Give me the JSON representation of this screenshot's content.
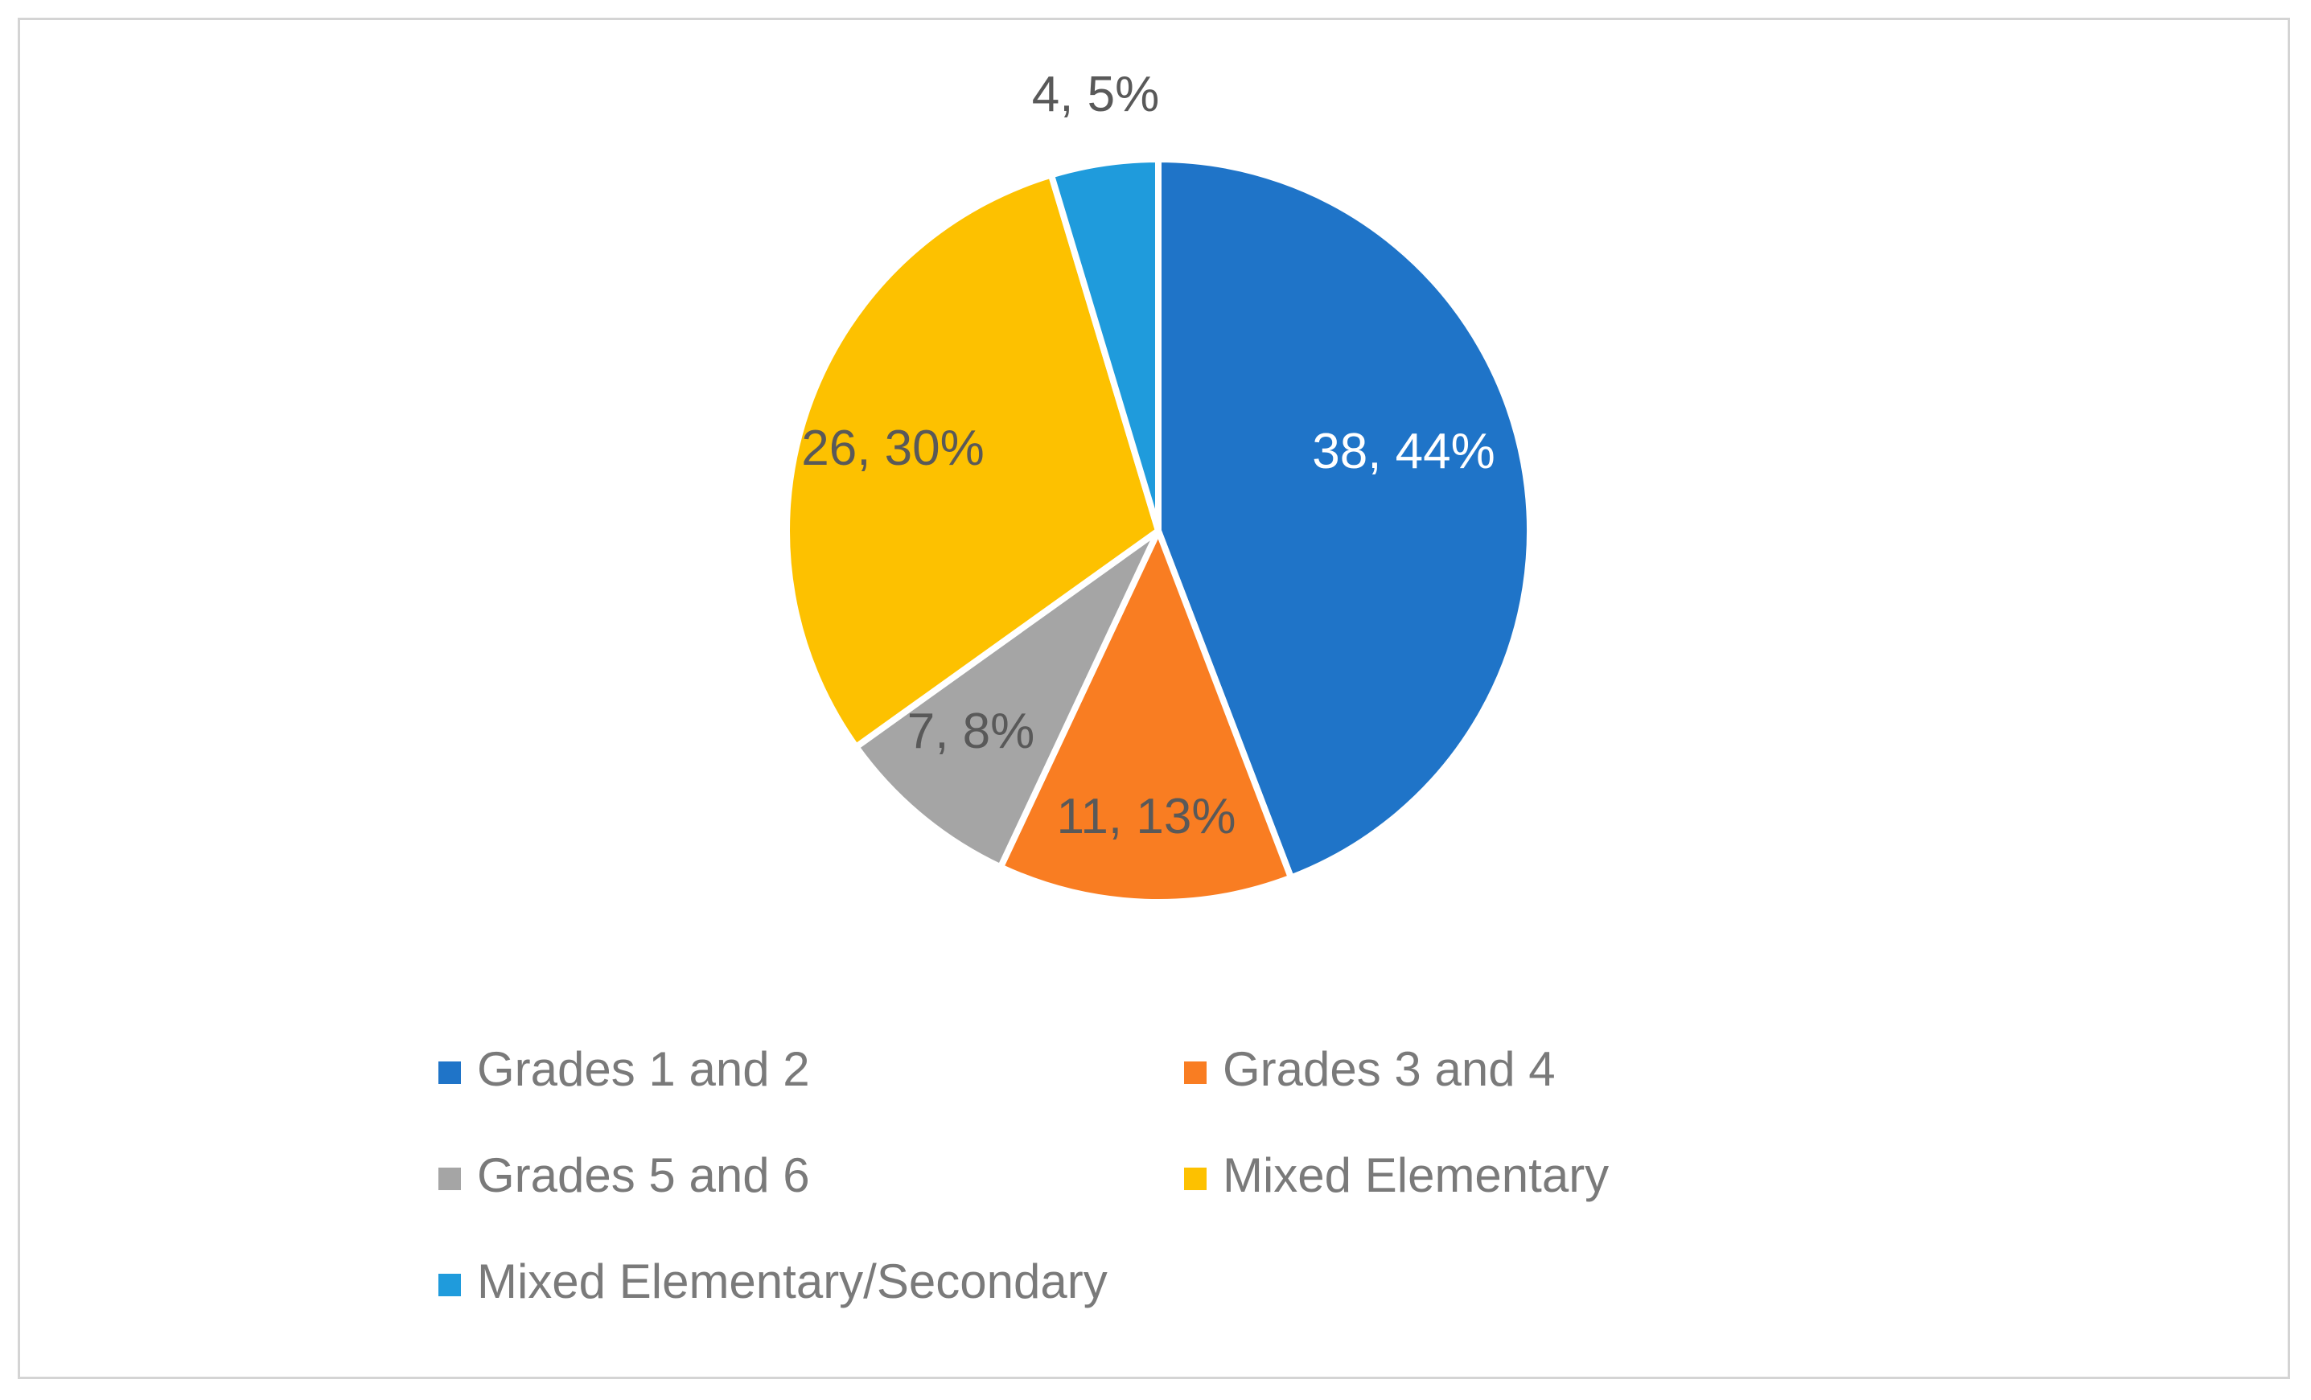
{
  "chart_data": {
    "type": "pie",
    "title": "",
    "categories": [
      "Grades 1 and 2",
      "Grades 3 and 4",
      "Grades 5 and 6",
      "Mixed Elementary",
      "Mixed Elementary/Secondary"
    ],
    "values": [
      38,
      11,
      7,
      26,
      4
    ],
    "percent_labels": [
      "44%",
      "13%",
      "8%",
      "30%",
      "5%"
    ],
    "data_labels": [
      "38, 44%",
      "11, 13%",
      "7, 8%",
      "26, 30%",
      "4, 5%"
    ],
    "colors": [
      "#1f74c8",
      "#f97d22",
      "#a5a5a5",
      "#fdc100",
      "#1f9bdc"
    ],
    "label_colors": [
      "#ffffff",
      "#595959",
      "#595959",
      "#595959",
      "#595959"
    ],
    "legend_position": "bottom"
  }
}
